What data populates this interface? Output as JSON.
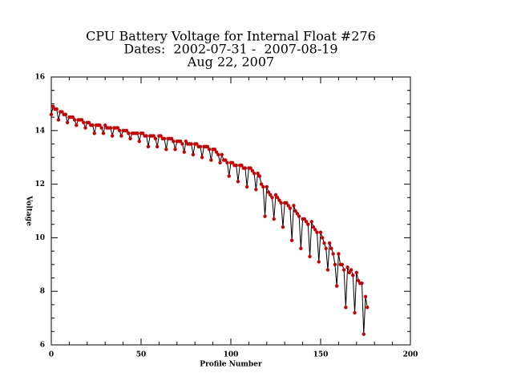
{
  "chart_data": {
    "type": "line",
    "title": [
      "CPU Battery Voltage for Internal Float #276",
      "Dates:  2002-07-31 -  2007-08-19",
      "Aug 22, 2007"
    ],
    "xlabel": "Profile Number",
    "ylabel": "Voltage",
    "xlim": [
      0,
      200
    ],
    "xticks": [
      0,
      50,
      100,
      150,
      200
    ],
    "ylim": [
      6,
      16
    ],
    "yticks": [
      6,
      8,
      10,
      12,
      14,
      16
    ],
    "line_color": "#000000",
    "marker_color": "#cc0000",
    "x": [
      0,
      1,
      2,
      3,
      4,
      5,
      6,
      7,
      8,
      9,
      10,
      11,
      12,
      13,
      14,
      15,
      16,
      17,
      18,
      19,
      20,
      21,
      22,
      23,
      24,
      25,
      26,
      27,
      28,
      29,
      30,
      31,
      32,
      33,
      34,
      35,
      36,
      37,
      38,
      39,
      40,
      41,
      42,
      43,
      44,
      45,
      46,
      47,
      48,
      49,
      50,
      51,
      52,
      53,
      54,
      55,
      56,
      57,
      58,
      59,
      60,
      61,
      62,
      63,
      64,
      65,
      66,
      67,
      68,
      69,
      70,
      71,
      72,
      73,
      74,
      75,
      76,
      77,
      78,
      79,
      80,
      81,
      82,
      83,
      84,
      85,
      86,
      87,
      88,
      89,
      90,
      91,
      92,
      93,
      94,
      95,
      96,
      97,
      98,
      99,
      100,
      101,
      102,
      103,
      104,
      105,
      106,
      107,
      108,
      109,
      110,
      111,
      112,
      113,
      114,
      115,
      116,
      117,
      118,
      119,
      120,
      121,
      122,
      123,
      124,
      125,
      126,
      127,
      128,
      129,
      130,
      131,
      132,
      133,
      134,
      135,
      136,
      137,
      138,
      139,
      140,
      141,
      142,
      143,
      144,
      145,
      146,
      147,
      148,
      149,
      150,
      151,
      152,
      153,
      154,
      155,
      156,
      157,
      158,
      159,
      160,
      161,
      162,
      163,
      164,
      165,
      166,
      167,
      168,
      169,
      170,
      171,
      172,
      173,
      174,
      175,
      176
    ],
    "values": [
      14.6,
      14.9,
      14.8,
      14.8,
      14.4,
      14.7,
      14.7,
      14.6,
      14.6,
      14.3,
      14.5,
      14.5,
      14.5,
      14.4,
      14.2,
      14.4,
      14.4,
      14.4,
      14.3,
      14.1,
      14.3,
      14.3,
      14.2,
      14.2,
      13.9,
      14.2,
      14.2,
      14.2,
      14.1,
      13.9,
      14.2,
      14.1,
      14.1,
      14.1,
      13.8,
      14.1,
      14.1,
      14.1,
      14.0,
      13.8,
      14.0,
      14.0,
      14.0,
      13.9,
      13.7,
      13.9,
      13.9,
      13.9,
      13.9,
      13.6,
      13.9,
      13.9,
      13.8,
      13.8,
      13.4,
      13.8,
      13.8,
      13.8,
      13.7,
      13.4,
      13.8,
      13.8,
      13.7,
      13.7,
      13.3,
      13.7,
      13.7,
      13.7,
      13.6,
      13.3,
      13.6,
      13.6,
      13.6,
      13.5,
      13.2,
      13.6,
      13.5,
      13.5,
      13.5,
      13.1,
      13.5,
      13.5,
      13.4,
      13.4,
      13.0,
      13.4,
      13.4,
      13.4,
      13.3,
      12.9,
      13.3,
      13.3,
      13.2,
      13.1,
      12.8,
      13.1,
      12.9,
      12.9,
      12.8,
      12.3,
      12.8,
      12.8,
      12.7,
      12.7,
      12.1,
      12.7,
      12.7,
      12.6,
      12.6,
      11.9,
      12.6,
      12.6,
      12.5,
      12.4,
      11.8,
      12.4,
      12.3,
      12.0,
      11.9,
      10.8,
      11.9,
      11.7,
      11.6,
      11.5,
      10.7,
      11.6,
      11.5,
      11.4,
      11.3,
      10.4,
      11.3,
      11.3,
      11.2,
      11.1,
      9.9,
      11.2,
      11.0,
      10.9,
      10.8,
      9.6,
      10.7,
      10.7,
      10.6,
      10.5,
      9.3,
      10.6,
      10.4,
      10.3,
      10.2,
      9.1,
      10.2,
      10.0,
      9.8,
      9.6,
      8.8,
      9.8,
      9.6,
      9.4,
      9.0,
      8.2,
      9.4,
      9.0,
      9.0,
      8.8,
      7.4,
      8.9,
      8.7,
      8.8,
      8.6,
      7.2,
      8.7,
      8.4,
      8.3,
      8.3,
      6.4,
      7.8,
      7.4
    ]
  }
}
